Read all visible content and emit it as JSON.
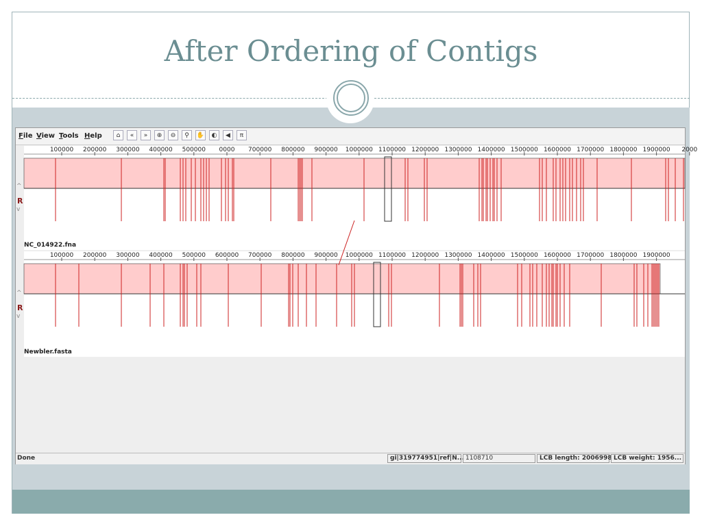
{
  "slide": {
    "title": "After Ordering of Contigs"
  },
  "menubar": {
    "items": [
      {
        "key": "F",
        "rest": "ile"
      },
      {
        "key": "V",
        "rest": "iew"
      },
      {
        "key": "T",
        "rest": "ools"
      },
      {
        "key": "H",
        "rest": "elp"
      }
    ]
  },
  "toolbar": {
    "buttons": [
      {
        "name": "home-icon",
        "glyph": "⌂"
      },
      {
        "name": "scroll-left-icon",
        "glyph": "«"
      },
      {
        "name": "scroll-right-icon",
        "glyph": "»"
      },
      {
        "name": "zoom-in-icon",
        "glyph": "⊕"
      },
      {
        "name": "zoom-out-icon",
        "glyph": "⊖"
      },
      {
        "name": "search-icon",
        "glyph": "⚲"
      },
      {
        "name": "lcb-icon",
        "glyph": "✋"
      },
      {
        "name": "color-icon",
        "glyph": "◐"
      },
      {
        "name": "back-icon",
        "glyph": "◀"
      },
      {
        "name": "mark-icon",
        "glyph": "π"
      }
    ]
  },
  "genomes": [
    {
      "label": "NC_014922.fna",
      "ticks": [
        "100000",
        "200000",
        "300000",
        "400000",
        "500000",
        "0000",
        "700000",
        "800000",
        "900000",
        "1000000",
        "1100000",
        "1200000",
        "1300000",
        "1400000",
        "1500000",
        "1600000",
        "1700000",
        "1800000",
        "1900000",
        "2000"
      ]
    },
    {
      "label": "Newbler.fasta",
      "ticks": [
        "100000",
        "200000",
        "300000",
        "400000",
        "500000",
        "600000",
        "700000",
        "800000",
        "900000",
        "1000000",
        "1100000",
        "1200000",
        "1300000",
        "1400000",
        "1500000",
        "1600000",
        "1700000",
        "1800000",
        "1900000"
      ]
    }
  ],
  "side_marker": "R",
  "status": {
    "left": "Done",
    "sequence": "gi|319774951|ref|N...",
    "position": "1108710",
    "lcb_length": "LCB length: 2006998",
    "lcb_weight": "LCB weight: 1956..."
  },
  "colors": {
    "lcb_fill": "#ffcccc",
    "lcb_line": "#cc2222",
    "title": "#6b8e92"
  }
}
